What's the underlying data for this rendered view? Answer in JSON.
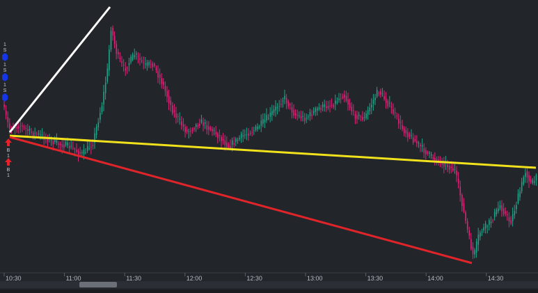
{
  "time_axis": {
    "labels": [
      "10:30",
      "11:00",
      "11:30",
      "12:00",
      "12:30",
      "13:00",
      "13:30",
      "14:00",
      "14:30"
    ]
  },
  "sell_markers": [
    {
      "count": "1",
      "side": "S"
    },
    {
      "count": "1",
      "side": "S"
    },
    {
      "count": "1",
      "side": "S"
    }
  ],
  "buy_markers": [
    {
      "side": "B",
      "count": "1"
    },
    {
      "side": "B",
      "count": "1"
    }
  ]
}
